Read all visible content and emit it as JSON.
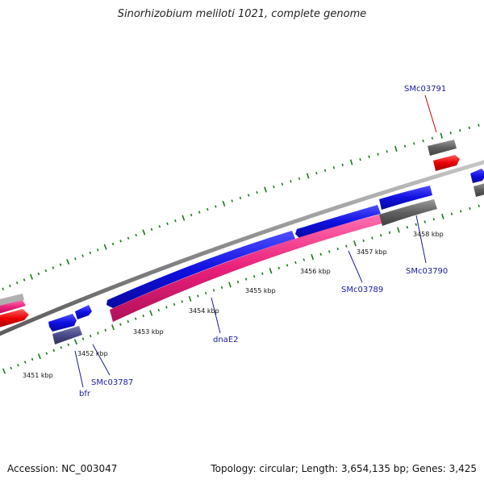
{
  "title": "Sinorhizobium meliloti 1021, complete genome",
  "footer": {
    "accession": "Accession: NC_003047",
    "summary": "Topology: circular; Length: 3,654,135 bp; Genes: 3,425"
  },
  "scale": {
    "labels": [
      "3451 kbp",
      "3452 kbp",
      "3453 kbp",
      "3454 kbp",
      "3455 kbp",
      "3456 kbp",
      "3457 kbp",
      "3458 kbp"
    ]
  },
  "genes": [
    {
      "name": "SMc03791",
      "color": "#d00000"
    },
    {
      "name": "SMc03790",
      "color": "#1a1aa0"
    },
    {
      "name": "SMc03789",
      "color": "#1a1aa0"
    },
    {
      "name": "dnaE2",
      "color": "#1a1aa0"
    },
    {
      "name": "SMc03787",
      "color": "#1a1aa0"
    },
    {
      "name": "bfr",
      "color": "#1a1aa0"
    }
  ],
  "colors": {
    "forward_cds": "#1010e0",
    "forward_gene": "#606060",
    "reverse_cds": "#e8207a",
    "rrna_red": "#e80000",
    "backbone": "#8a8a8a",
    "ticks": "#1a7a1a",
    "purple_gene": "#4a4a8a"
  }
}
